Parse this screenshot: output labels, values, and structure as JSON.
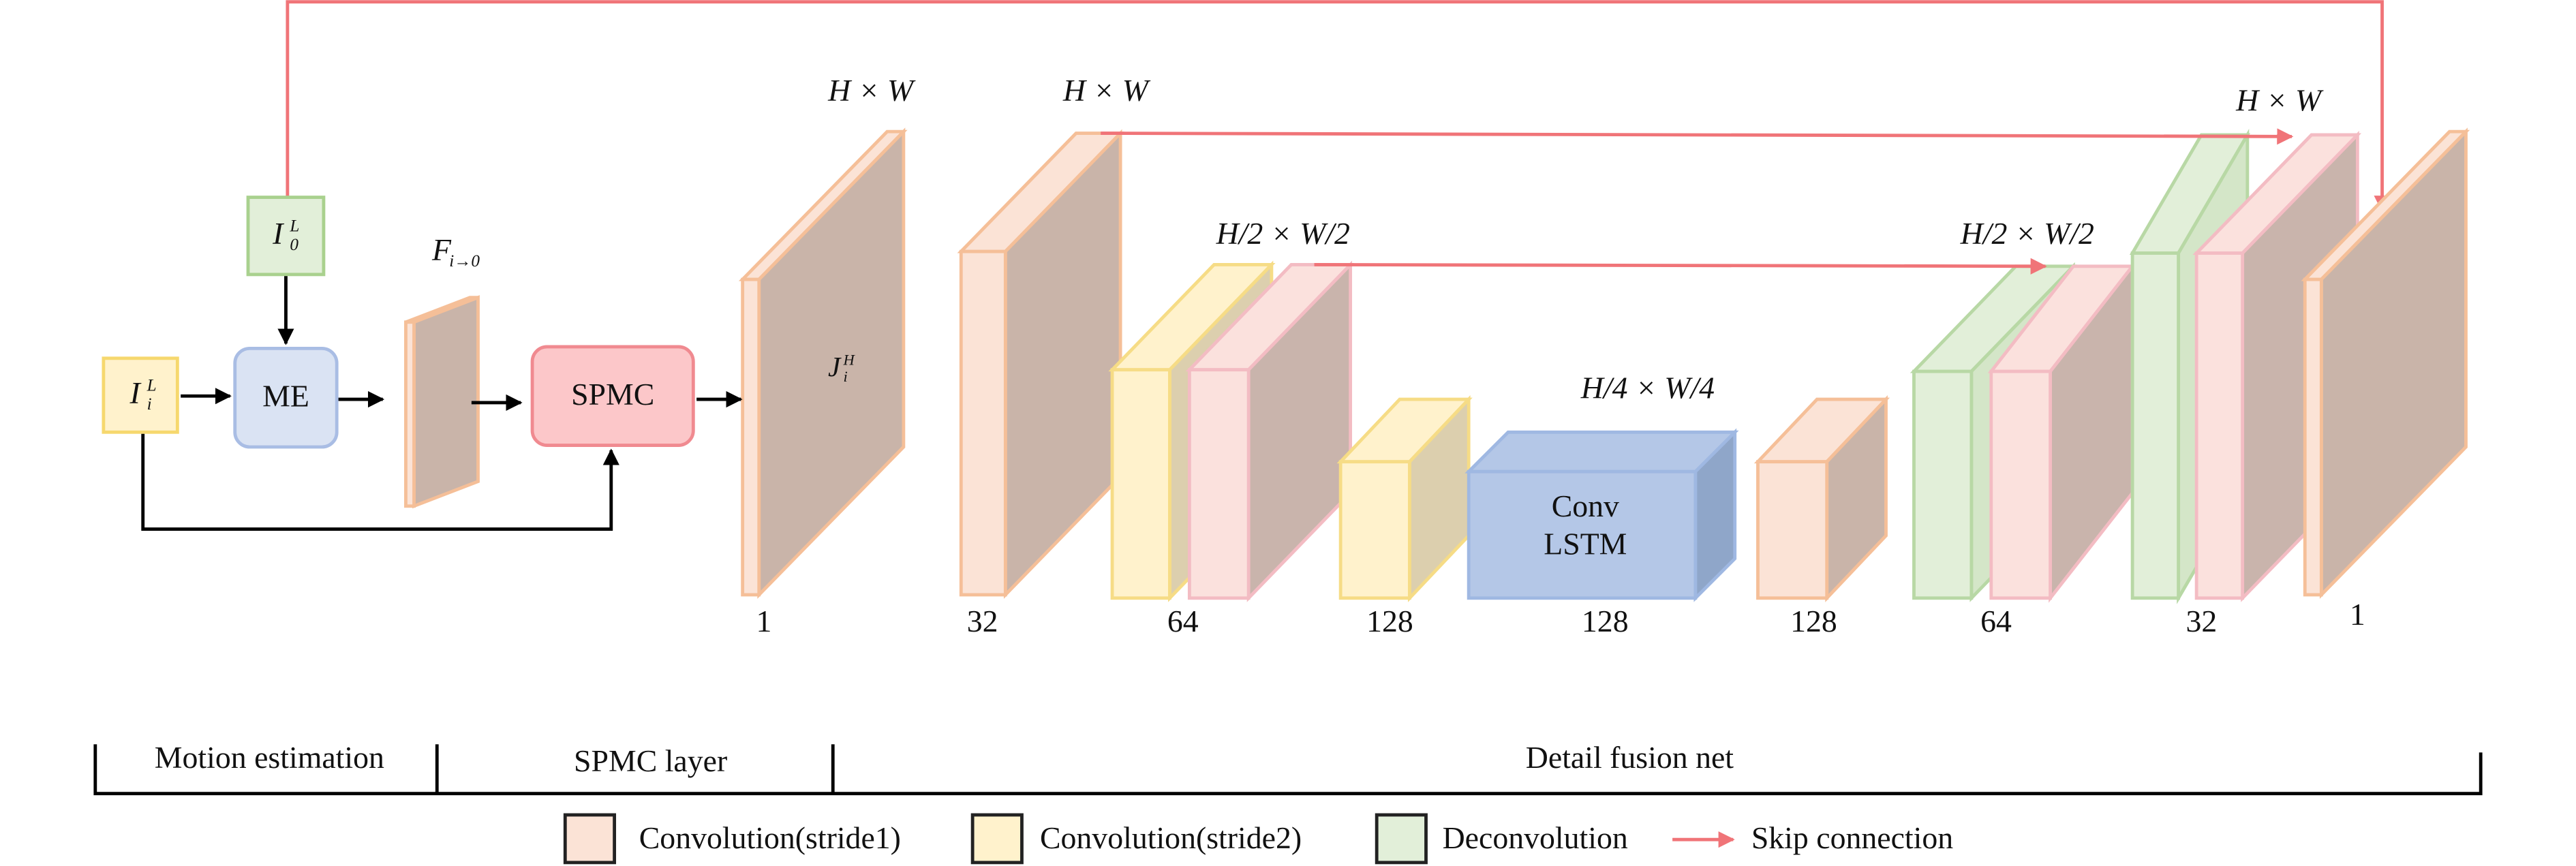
{
  "inputs": {
    "low_res": {
      "base": "I",
      "sub": "i",
      "sup": "L"
    },
    "reference": {
      "base": "I",
      "sub": "0",
      "sup": "L"
    }
  },
  "modules": {
    "motion_estimation": "ME",
    "spmc": "SPMC"
  },
  "flow_label": {
    "base": "F",
    "sub": "i→0"
  },
  "output_label": {
    "base": "J",
    "sub": "i",
    "sup": "H"
  },
  "resolution_labels": [
    "H × W",
    "H × W",
    "H/2 × W/2",
    "H/4 × W/4",
    "H/2 × W/2",
    "H × W"
  ],
  "conv_lstm": [
    "Conv",
    "LSTM"
  ],
  "channels": [
    1,
    32,
    64,
    128,
    128,
    128,
    64,
    32,
    1
  ],
  "sections": [
    "Motion estimation",
    "SPMC layer",
    "Detail fusion net"
  ],
  "legend": [
    "Convolution(stride1)",
    "Convolution(stride2)",
    "Deconvolution",
    "Skip connection"
  ]
}
